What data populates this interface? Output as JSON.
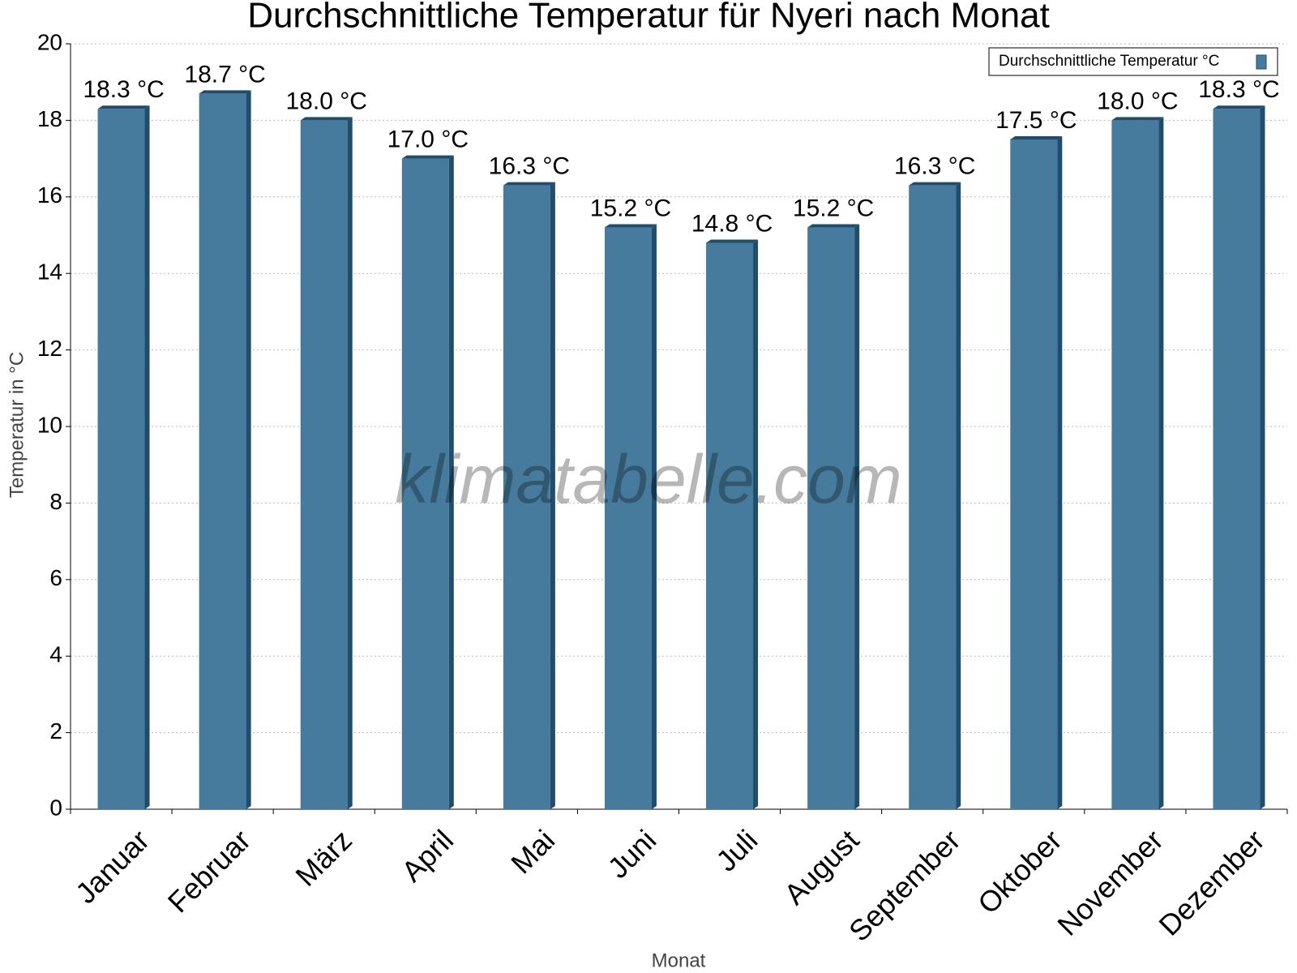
{
  "chart_data": {
    "type": "bar",
    "title": "Durchschnittliche Temperatur für Nyeri nach Monat",
    "x_label": "Monat",
    "y_label": "Temperatur in °C",
    "watermark": "klimatabelle.com",
    "categories": [
      "Januar",
      "Februar",
      "März",
      "April",
      "Mai",
      "Juni",
      "Juli",
      "August",
      "September",
      "Oktober",
      "November",
      "Dezember"
    ],
    "series": [
      {
        "name": "Durchschnittliche Temperatur °C",
        "color": "#467b9d",
        "values": [
          18.3,
          18.7,
          18.0,
          17.0,
          16.3,
          15.2,
          14.8,
          15.2,
          16.3,
          17.5,
          18.0,
          18.3
        ],
        "value_labels": [
          "18.3 °C",
          "18.7 °C",
          "18.0 °C",
          "17.0 °C",
          "16.3 °C",
          "15.2 °C",
          "14.8 °C",
          "15.2 °C",
          "16.3 °C",
          "17.5 °C",
          "18.0 °C",
          "18.3 °C"
        ]
      }
    ],
    "ylim": [
      0,
      20
    ],
    "yticks": [
      0,
      2,
      4,
      6,
      8,
      10,
      12,
      14,
      16,
      18,
      20
    ],
    "grid": true,
    "legend": "top-right"
  }
}
